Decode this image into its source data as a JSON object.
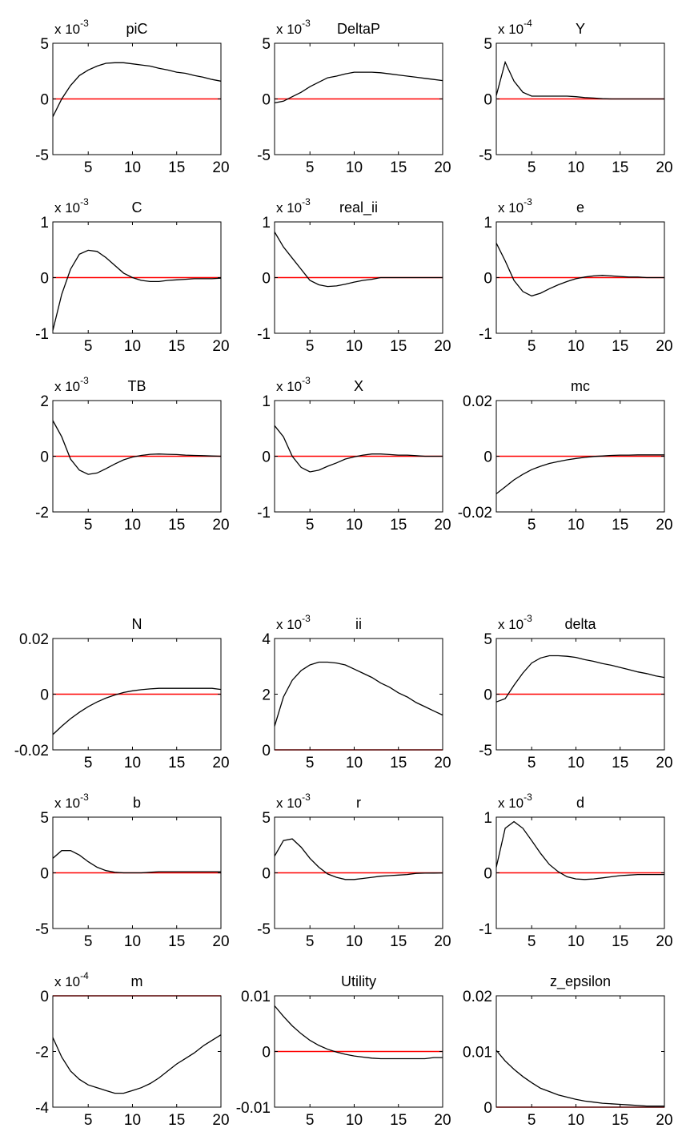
{
  "figure": {
    "axis_color": "#000000",
    "series_color": "#000000",
    "zero_line_color": "#ff0000",
    "background": "#ffffff"
  },
  "chart_data": [
    {
      "type": "line",
      "title": "piC",
      "exponent": "-3",
      "x": [
        1,
        2,
        3,
        4,
        5,
        6,
        7,
        8,
        9,
        10,
        11,
        12,
        13,
        14,
        15,
        16,
        17,
        18,
        19,
        20
      ],
      "values": [
        -1.6,
        0.0,
        1.2,
        2.1,
        2.6,
        2.95,
        3.2,
        3.25,
        3.25,
        3.15,
        3.05,
        2.95,
        2.75,
        2.6,
        2.4,
        2.3,
        2.1,
        1.95,
        1.75,
        1.6
      ],
      "ylim": [
        -5,
        5
      ],
      "yticks": [
        "-5",
        "0",
        "5"
      ],
      "xticks": [
        "5",
        "10",
        "15",
        "20"
      ],
      "xlim": [
        1,
        20
      ]
    },
    {
      "type": "line",
      "title": "DeltaP",
      "exponent": "-3",
      "x": [
        1,
        2,
        3,
        4,
        5,
        6,
        7,
        8,
        9,
        10,
        11,
        12,
        13,
        14,
        15,
        16,
        17,
        18,
        19,
        20
      ],
      "values": [
        -0.35,
        -0.2,
        0.2,
        0.6,
        1.1,
        1.5,
        1.9,
        2.05,
        2.25,
        2.4,
        2.4,
        2.4,
        2.35,
        2.25,
        2.15,
        2.05,
        1.95,
        1.85,
        1.75,
        1.65
      ],
      "ylim": [
        -5,
        5
      ],
      "yticks": [
        "-5",
        "0",
        "5"
      ],
      "xticks": [
        "5",
        "10",
        "15",
        "20"
      ],
      "xlim": [
        1,
        20
      ]
    },
    {
      "type": "line",
      "title": "Y",
      "exponent": "-4",
      "x": [
        1,
        2,
        3,
        4,
        5,
        6,
        7,
        8,
        9,
        10,
        11,
        12,
        13,
        14,
        15,
        16,
        17,
        18,
        19,
        20
      ],
      "values": [
        0.3,
        3.3,
        1.6,
        0.6,
        0.25,
        0.25,
        0.25,
        0.25,
        0.25,
        0.2,
        0.12,
        0.08,
        0.02,
        0.0,
        0.0,
        0.0,
        0.0,
        0.0,
        0.0,
        0.0
      ],
      "ylim": [
        -5,
        5
      ],
      "yticks": [
        "-5",
        "0",
        "5"
      ],
      "xticks": [
        "5",
        "10",
        "15",
        "20"
      ],
      "xlim": [
        1,
        20
      ]
    },
    {
      "type": "line",
      "title": "C",
      "exponent": "-3",
      "x": [
        1,
        2,
        3,
        4,
        5,
        6,
        7,
        8,
        9,
        10,
        11,
        12,
        13,
        14,
        15,
        16,
        17,
        18,
        19,
        20
      ],
      "values": [
        -0.95,
        -0.3,
        0.15,
        0.42,
        0.49,
        0.47,
        0.36,
        0.22,
        0.08,
        0.0,
        -0.05,
        -0.07,
        -0.07,
        -0.05,
        -0.04,
        -0.03,
        -0.02,
        -0.02,
        -0.02,
        -0.01
      ],
      "ylim": [
        -1,
        1
      ],
      "yticks": [
        "-1",
        "0",
        "1"
      ],
      "xticks": [
        "5",
        "10",
        "15",
        "20"
      ],
      "xlim": [
        1,
        20
      ]
    },
    {
      "type": "line",
      "title": "real_ii",
      "exponent": "-3",
      "x": [
        1,
        2,
        3,
        4,
        5,
        6,
        7,
        8,
        9,
        10,
        11,
        12,
        13,
        14,
        15,
        16,
        17,
        18,
        19,
        20
      ],
      "values": [
        0.82,
        0.55,
        0.35,
        0.15,
        -0.05,
        -0.13,
        -0.16,
        -0.15,
        -0.12,
        -0.08,
        -0.05,
        -0.03,
        0.0,
        0.0,
        0.0,
        0.0,
        0.0,
        0.0,
        0.0,
        0.0
      ],
      "ylim": [
        -1,
        1
      ],
      "yticks": [
        "-1",
        "0",
        "1"
      ],
      "xticks": [
        "5",
        "10",
        "15",
        "20"
      ],
      "xlim": [
        1,
        20
      ]
    },
    {
      "type": "line",
      "title": "e",
      "exponent": "-3",
      "x": [
        1,
        2,
        3,
        4,
        5,
        6,
        7,
        8,
        9,
        10,
        11,
        12,
        13,
        14,
        15,
        16,
        17,
        18,
        19,
        20
      ],
      "values": [
        0.62,
        0.3,
        -0.05,
        -0.25,
        -0.33,
        -0.28,
        -0.2,
        -0.13,
        -0.07,
        -0.02,
        0.01,
        0.03,
        0.04,
        0.03,
        0.02,
        0.01,
        0.01,
        0.0,
        0.0,
        0.0
      ],
      "ylim": [
        -1,
        1
      ],
      "yticks": [
        "-1",
        "0",
        "1"
      ],
      "xticks": [
        "5",
        "10",
        "15",
        "20"
      ],
      "xlim": [
        1,
        20
      ]
    },
    {
      "type": "line",
      "title": "TB",
      "exponent": "-3",
      "x": [
        1,
        2,
        3,
        4,
        5,
        6,
        7,
        8,
        9,
        10,
        11,
        12,
        13,
        14,
        15,
        16,
        17,
        18,
        19,
        20
      ],
      "values": [
        1.28,
        0.7,
        -0.1,
        -0.5,
        -0.65,
        -0.6,
        -0.45,
        -0.28,
        -0.13,
        -0.03,
        0.03,
        0.07,
        0.08,
        0.07,
        0.06,
        0.04,
        0.03,
        0.02,
        0.01,
        0.0
      ],
      "ylim": [
        -2,
        2
      ],
      "yticks": [
        "-2",
        "0",
        "2"
      ],
      "xticks": [
        "5",
        "10",
        "15",
        "20"
      ],
      "xlim": [
        1,
        20
      ]
    },
    {
      "type": "line",
      "title": "X",
      "exponent": "-3",
      "x": [
        1,
        2,
        3,
        4,
        5,
        6,
        7,
        8,
        9,
        10,
        11,
        12,
        13,
        14,
        15,
        16,
        17,
        18,
        19,
        20
      ],
      "values": [
        0.55,
        0.35,
        0.0,
        -0.2,
        -0.28,
        -0.25,
        -0.18,
        -0.12,
        -0.05,
        -0.01,
        0.02,
        0.04,
        0.04,
        0.03,
        0.02,
        0.02,
        0.01,
        0.0,
        0.0,
        0.0
      ],
      "ylim": [
        -1,
        1
      ],
      "yticks": [
        "-1",
        "0",
        "1"
      ],
      "xticks": [
        "5",
        "10",
        "15",
        "20"
      ],
      "xlim": [
        1,
        20
      ]
    },
    {
      "type": "line",
      "title": "mc",
      "exponent": "",
      "x": [
        1,
        2,
        3,
        4,
        5,
        6,
        7,
        8,
        9,
        10,
        11,
        12,
        13,
        14,
        15,
        16,
        17,
        18,
        19,
        20
      ],
      "values": [
        -0.0135,
        -0.011,
        -0.0085,
        -0.0065,
        -0.0048,
        -0.0036,
        -0.0026,
        -0.0019,
        -0.0013,
        -0.0008,
        -0.0004,
        -0.0001,
        0.0001,
        0.0003,
        0.0004,
        0.0004,
        0.0005,
        0.0005,
        0.0005,
        0.0005
      ],
      "ylim": [
        -0.02,
        0.02
      ],
      "yticks": [
        "-0.02",
        "0",
        "0.02"
      ],
      "xticks": [
        "5",
        "10",
        "15",
        "20"
      ],
      "xlim": [
        1,
        20
      ]
    },
    {
      "type": "line",
      "title": "N",
      "exponent": "",
      "x": [
        1,
        2,
        3,
        4,
        5,
        6,
        7,
        8,
        9,
        10,
        11,
        12,
        13,
        14,
        15,
        16,
        17,
        18,
        19,
        20
      ],
      "values": [
        -0.0145,
        -0.0115,
        -0.0088,
        -0.0065,
        -0.0045,
        -0.0028,
        -0.0014,
        -0.0003,
        0.0006,
        0.0012,
        0.0016,
        0.0019,
        0.0021,
        0.0021,
        0.0021,
        0.0021,
        0.0021,
        0.0021,
        0.0021,
        0.0017
      ],
      "ylim": [
        -0.02,
        0.02
      ],
      "yticks": [
        "-0.02",
        "0",
        "0.02"
      ],
      "xticks": [
        "5",
        "10",
        "15",
        "20"
      ],
      "xlim": [
        1,
        20
      ]
    },
    {
      "type": "line",
      "title": "ii",
      "exponent": "-3",
      "x": [
        1,
        2,
        3,
        4,
        5,
        6,
        7,
        8,
        9,
        10,
        11,
        12,
        13,
        14,
        15,
        16,
        17,
        18,
        19,
        20
      ],
      "values": [
        0.85,
        1.9,
        2.5,
        2.85,
        3.05,
        3.15,
        3.15,
        3.12,
        3.05,
        2.9,
        2.75,
        2.6,
        2.4,
        2.25,
        2.05,
        1.9,
        1.7,
        1.55,
        1.4,
        1.25
      ],
      "ylim": [
        0,
        4
      ],
      "yticks": [
        "0",
        "2",
        "4"
      ],
      "xticks": [
        "5",
        "10",
        "15",
        "20"
      ],
      "xlim": [
        1,
        20
      ]
    },
    {
      "type": "line",
      "title": "delta",
      "exponent": "-3",
      "x": [
        1,
        2,
        3,
        4,
        5,
        6,
        7,
        8,
        9,
        10,
        11,
        12,
        13,
        14,
        15,
        16,
        17,
        18,
        19,
        20
      ],
      "values": [
        -0.7,
        -0.4,
        0.8,
        1.9,
        2.8,
        3.25,
        3.45,
        3.45,
        3.4,
        3.3,
        3.1,
        2.95,
        2.75,
        2.6,
        2.4,
        2.2,
        2.0,
        1.85,
        1.65,
        1.5
      ],
      "ylim": [
        -5,
        5
      ],
      "yticks": [
        "-5",
        "0",
        "5"
      ],
      "xticks": [
        "5",
        "10",
        "15",
        "20"
      ],
      "xlim": [
        1,
        20
      ]
    },
    {
      "type": "line",
      "title": "b",
      "exponent": "-3",
      "x": [
        1,
        2,
        3,
        4,
        5,
        6,
        7,
        8,
        9,
        10,
        11,
        12,
        13,
        14,
        15,
        16,
        17,
        18,
        19,
        20
      ],
      "values": [
        1.3,
        2.0,
        2.0,
        1.6,
        1.0,
        0.5,
        0.2,
        0.05,
        0.0,
        0.0,
        0.0,
        0.05,
        0.1,
        0.1,
        0.1,
        0.1,
        0.1,
        0.1,
        0.1,
        0.1
      ],
      "ylim": [
        -5,
        5
      ],
      "yticks": [
        "-5",
        "0",
        "5"
      ],
      "xticks": [
        "5",
        "10",
        "15",
        "20"
      ],
      "xlim": [
        1,
        20
      ]
    },
    {
      "type": "line",
      "title": "r",
      "exponent": "-3",
      "x": [
        1,
        2,
        3,
        4,
        5,
        6,
        7,
        8,
        9,
        10,
        11,
        12,
        13,
        14,
        15,
        16,
        17,
        18,
        19,
        20
      ],
      "values": [
        1.5,
        2.9,
        3.05,
        2.3,
        1.3,
        0.5,
        -0.1,
        -0.4,
        -0.6,
        -0.6,
        -0.5,
        -0.4,
        -0.3,
        -0.25,
        -0.2,
        -0.15,
        -0.05,
        -0.03,
        -0.02,
        -0.01
      ],
      "ylim": [
        -5,
        5
      ],
      "yticks": [
        "-5",
        "0",
        "5"
      ],
      "xticks": [
        "5",
        "10",
        "15",
        "20"
      ],
      "xlim": [
        1,
        20
      ]
    },
    {
      "type": "line",
      "title": "d",
      "exponent": "-3",
      "x": [
        1,
        2,
        3,
        4,
        5,
        6,
        7,
        8,
        9,
        10,
        11,
        12,
        13,
        14,
        15,
        16,
        17,
        18,
        19,
        20
      ],
      "values": [
        0.1,
        0.8,
        0.92,
        0.8,
        0.58,
        0.35,
        0.15,
        0.02,
        -0.07,
        -0.11,
        -0.12,
        -0.11,
        -0.09,
        -0.07,
        -0.05,
        -0.04,
        -0.03,
        -0.03,
        -0.03,
        -0.03
      ],
      "ylim": [
        -1,
        1
      ],
      "yticks": [
        "-1",
        "0",
        "1"
      ],
      "xticks": [
        "5",
        "10",
        "15",
        "20"
      ],
      "xlim": [
        1,
        20
      ]
    },
    {
      "type": "line",
      "title": "m",
      "exponent": "-4",
      "x": [
        1,
        2,
        3,
        4,
        5,
        6,
        7,
        8,
        9,
        10,
        11,
        12,
        13,
        14,
        15,
        16,
        17,
        18,
        19,
        20
      ],
      "values": [
        -1.5,
        -2.2,
        -2.7,
        -3.0,
        -3.2,
        -3.3,
        -3.4,
        -3.5,
        -3.5,
        -3.4,
        -3.3,
        -3.15,
        -2.95,
        -2.7,
        -2.45,
        -2.25,
        -2.05,
        -1.8,
        -1.6,
        -1.4
      ],
      "ylim": [
        -4,
        0
      ],
      "yticks": [
        "-4",
        "-2",
        "0"
      ],
      "xticks": [
        "5",
        "10",
        "15",
        "20"
      ],
      "xlim": [
        1,
        20
      ]
    },
    {
      "type": "line",
      "title": "Utility",
      "exponent": "",
      "x": [
        1,
        2,
        3,
        4,
        5,
        6,
        7,
        8,
        9,
        10,
        11,
        12,
        13,
        14,
        15,
        16,
        17,
        18,
        19,
        20
      ],
      "values": [
        0.0082,
        0.0063,
        0.0046,
        0.0032,
        0.002,
        0.0011,
        0.0004,
        -0.0001,
        -0.0005,
        -0.0008,
        -0.001,
        -0.0012,
        -0.0013,
        -0.0013,
        -0.0013,
        -0.0013,
        -0.0013,
        -0.0013,
        -0.0011,
        -0.0011
      ],
      "ylim": [
        -0.01,
        0.01
      ],
      "yticks": [
        "-0.01",
        "0",
        "0.01"
      ],
      "xticks": [
        "5",
        "10",
        "15",
        "20"
      ],
      "xlim": [
        1,
        20
      ]
    },
    {
      "type": "line",
      "title": "z_epsilon",
      "exponent": "",
      "x": [
        1,
        2,
        3,
        4,
        5,
        6,
        7,
        8,
        9,
        10,
        11,
        12,
        13,
        14,
        15,
        16,
        17,
        18,
        19,
        20
      ],
      "values": [
        0.0102,
        0.0083,
        0.0068,
        0.0055,
        0.0044,
        0.0034,
        0.0028,
        0.0022,
        0.0018,
        0.0014,
        0.0011,
        0.0009,
        0.0007,
        0.0006,
        0.0005,
        0.0004,
        0.0003,
        0.0002,
        0.0002,
        0.0002
      ],
      "ylim": [
        0,
        0.02
      ],
      "yticks": [
        "0",
        "0.01",
        "0.02"
      ],
      "xticks": [
        "5",
        "10",
        "15",
        "20"
      ],
      "xlim": [
        1,
        20
      ]
    }
  ]
}
